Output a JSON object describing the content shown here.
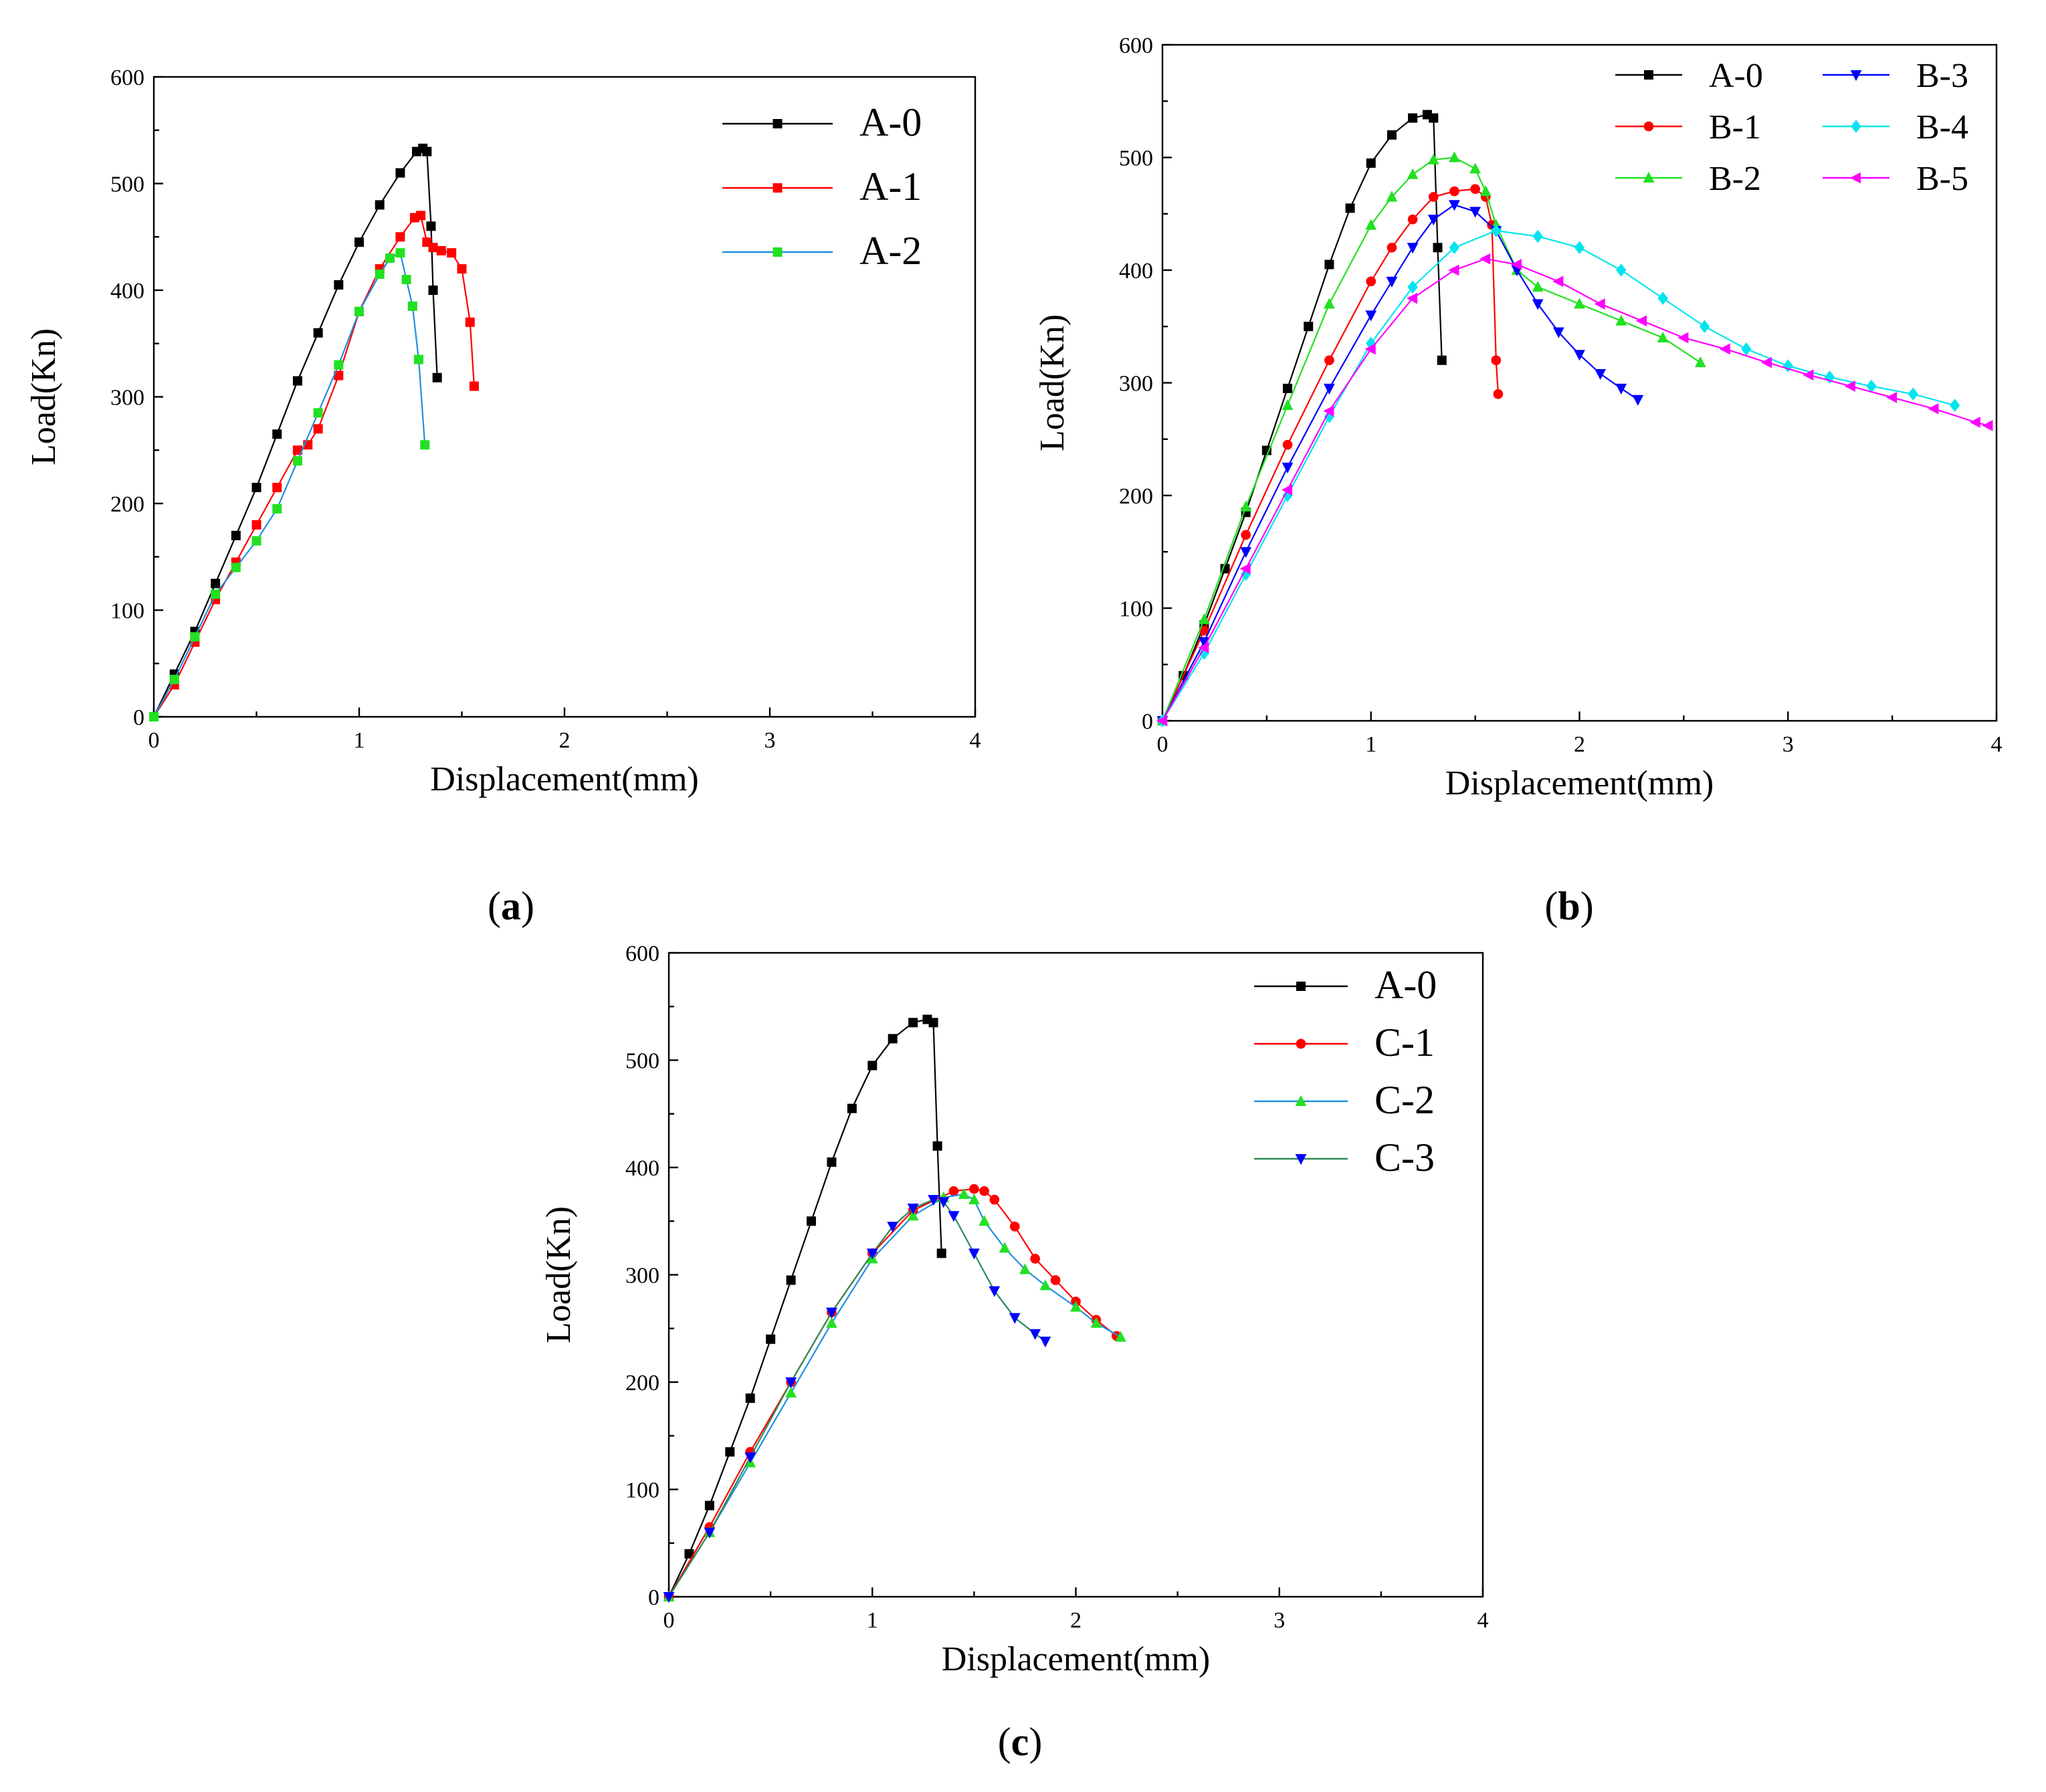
{
  "chart_data": [
    {
      "id": "a",
      "type": "line",
      "caption": "a",
      "xlabel": "Displacement(mm)",
      "ylabel": "Load(Kn)",
      "xlim": [
        0,
        4
      ],
      "ylim": [
        0,
        600
      ],
      "xticks": [
        "0",
        "1",
        "2",
        "3",
        "4"
      ],
      "yticks": [
        "0",
        "100",
        "200",
        "300",
        "400",
        "500",
        "600"
      ],
      "legend_position": "top-right",
      "series": [
        {
          "name": "A-0",
          "color": "#000000",
          "marker": "square",
          "x": [
            0,
            0.1,
            0.2,
            0.3,
            0.4,
            0.5,
            0.6,
            0.7,
            0.8,
            0.9,
            1.0,
            1.1,
            1.2,
            1.28,
            1.31,
            1.33,
            1.35,
            1.36,
            1.38
          ],
          "y": [
            0,
            40,
            80,
            125,
            170,
            215,
            265,
            315,
            360,
            405,
            445,
            480,
            510,
            530,
            533,
            530,
            460,
            400,
            318
          ]
        },
        {
          "name": "A-1",
          "color": "#ff0000",
          "marker": "square",
          "x": [
            0,
            0.1,
            0.2,
            0.3,
            0.4,
            0.5,
            0.6,
            0.7,
            0.75,
            0.8,
            0.9,
            1.0,
            1.1,
            1.2,
            1.27,
            1.3,
            1.33,
            1.36,
            1.4,
            1.45,
            1.5,
            1.54,
            1.56
          ],
          "y": [
            0,
            30,
            70,
            110,
            145,
            180,
            215,
            250,
            255,
            270,
            320,
            380,
            420,
            450,
            468,
            470,
            445,
            440,
            437,
            435,
            420,
            370,
            310
          ]
        },
        {
          "name": "A-2",
          "color": "#1f8fe0",
          "marker": "square",
          "marker_color": "#22e022",
          "x": [
            0,
            0.1,
            0.2,
            0.3,
            0.4,
            0.5,
            0.6,
            0.7,
            0.8,
            0.9,
            1.0,
            1.1,
            1.15,
            1.2,
            1.23,
            1.26,
            1.29,
            1.32
          ],
          "y": [
            0,
            35,
            75,
            115,
            140,
            165,
            195,
            240,
            285,
            330,
            380,
            415,
            430,
            435,
            410,
            385,
            335,
            255
          ]
        }
      ]
    },
    {
      "id": "b",
      "type": "line",
      "caption": "b",
      "xlabel": "Displacement(mm)",
      "ylabel": "Load(Kn)",
      "xlim": [
        0,
        4
      ],
      "ylim": [
        0,
        600
      ],
      "xticks": [
        "0",
        "1",
        "2",
        "3",
        "4"
      ],
      "yticks": [
        "0",
        "100",
        "200",
        "300",
        "400",
        "500",
        "600"
      ],
      "legend_position": "top-right",
      "series": [
        {
          "name": "A-0",
          "color": "#000000",
          "marker": "square",
          "x": [
            0,
            0.1,
            0.2,
            0.3,
            0.4,
            0.5,
            0.6,
            0.7,
            0.8,
            0.9,
            1.0,
            1.1,
            1.2,
            1.27,
            1.3,
            1.32,
            1.34
          ],
          "y": [
            0,
            40,
            85,
            135,
            185,
            240,
            295,
            350,
            405,
            455,
            495,
            520,
            535,
            538,
            535,
            420,
            320
          ]
        },
        {
          "name": "B-1",
          "color": "#ff0000",
          "marker": "circle",
          "x": [
            0,
            0.2,
            0.4,
            0.6,
            0.8,
            1.0,
            1.1,
            1.2,
            1.3,
            1.4,
            1.5,
            1.55,
            1.58,
            1.6,
            1.61
          ],
          "y": [
            0,
            80,
            165,
            245,
            320,
            390,
            420,
            445,
            465,
            470,
            472,
            465,
            440,
            320,
            290
          ]
        },
        {
          "name": "B-2",
          "color": "#22e022",
          "marker": "triangle-up",
          "x": [
            0,
            0.2,
            0.4,
            0.6,
            0.8,
            1.0,
            1.1,
            1.2,
            1.3,
            1.4,
            1.5,
            1.55,
            1.6,
            1.7,
            1.8,
            2.0,
            2.2,
            2.4,
            2.58
          ],
          "y": [
            0,
            90,
            190,
            280,
            370,
            440,
            465,
            485,
            498,
            500,
            490,
            470,
            440,
            400,
            385,
            370,
            355,
            340,
            318
          ]
        },
        {
          "name": "B-3",
          "color": "#0000ff",
          "marker": "triangle-down",
          "x": [
            0,
            0.2,
            0.4,
            0.6,
            0.8,
            1.0,
            1.1,
            1.2,
            1.3,
            1.4,
            1.5,
            1.6,
            1.7,
            1.8,
            1.9,
            2.0,
            2.1,
            2.2,
            2.28
          ],
          "y": [
            0,
            70,
            150,
            225,
            295,
            360,
            390,
            420,
            445,
            458,
            452,
            435,
            400,
            370,
            345,
            325,
            308,
            295,
            285
          ]
        },
        {
          "name": "B-4",
          "color": "#00e5ee",
          "marker": "diamond",
          "x": [
            0,
            0.2,
            0.4,
            0.6,
            0.8,
            1.0,
            1.2,
            1.4,
            1.6,
            1.8,
            2.0,
            2.2,
            2.4,
            2.6,
            2.8,
            3.0,
            3.2,
            3.4,
            3.6,
            3.8
          ],
          "y": [
            0,
            60,
            130,
            200,
            270,
            335,
            385,
            420,
            435,
            430,
            420,
            400,
            375,
            350,
            330,
            315,
            305,
            297,
            290,
            280
          ]
        },
        {
          "name": "B-5",
          "color": "#ff00ff",
          "marker": "triangle-left",
          "x": [
            0,
            0.2,
            0.4,
            0.6,
            0.8,
            1.0,
            1.2,
            1.4,
            1.55,
            1.7,
            1.9,
            2.1,
            2.3,
            2.5,
            2.7,
            2.9,
            3.1,
            3.3,
            3.5,
            3.7,
            3.9,
            3.96
          ],
          "y": [
            0,
            65,
            135,
            205,
            275,
            330,
            375,
            400,
            410,
            405,
            390,
            370,
            355,
            340,
            330,
            318,
            307,
            297,
            287,
            277,
            265,
            262
          ]
        }
      ]
    },
    {
      "id": "c",
      "type": "line",
      "caption": "c",
      "xlabel": "Displacement(mm)",
      "ylabel": "Load(Kn)",
      "xlim": [
        0,
        4
      ],
      "ylim": [
        0,
        600
      ],
      "xticks": [
        "0",
        "1",
        "2",
        "3",
        "4"
      ],
      "yticks": [
        "0",
        "100",
        "200",
        "300",
        "400",
        "500",
        "600"
      ],
      "legend_position": "top-right",
      "series": [
        {
          "name": "A-0",
          "color": "#000000",
          "marker": "square",
          "x": [
            0,
            0.1,
            0.2,
            0.3,
            0.4,
            0.5,
            0.6,
            0.7,
            0.8,
            0.9,
            1.0,
            1.1,
            1.2,
            1.27,
            1.3,
            1.32,
            1.34
          ],
          "y": [
            0,
            40,
            85,
            135,
            185,
            240,
            295,
            350,
            405,
            455,
            495,
            520,
            535,
            538,
            535,
            420,
            320
          ]
        },
        {
          "name": "C-1",
          "color": "#ff0000",
          "marker": "circle",
          "x": [
            0,
            0.2,
            0.4,
            0.6,
            0.8,
            1.0,
            1.2,
            1.4,
            1.5,
            1.55,
            1.6,
            1.7,
            1.8,
            1.9,
            2.0,
            2.1,
            2.2
          ],
          "y": [
            0,
            65,
            135,
            200,
            265,
            320,
            360,
            378,
            380,
            378,
            370,
            345,
            315,
            295,
            275,
            258,
            243
          ]
        },
        {
          "name": "C-2",
          "color": "#1f8fe0",
          "marker": "triangle-up",
          "marker_color": "#22e022",
          "x": [
            0,
            0.2,
            0.4,
            0.6,
            0.8,
            1.0,
            1.2,
            1.35,
            1.45,
            1.5,
            1.55,
            1.65,
            1.75,
            1.85,
            2.0,
            2.1,
            2.22
          ],
          "y": [
            0,
            60,
            125,
            190,
            255,
            315,
            355,
            372,
            375,
            370,
            350,
            325,
            305,
            290,
            270,
            255,
            242
          ]
        },
        {
          "name": "C-3",
          "color": "#2e8b57",
          "marker": "triangle-down",
          "marker_color": "#0000ff",
          "x": [
            0,
            0.2,
            0.4,
            0.6,
            0.8,
            1.0,
            1.1,
            1.2,
            1.3,
            1.35,
            1.4,
            1.5,
            1.6,
            1.7,
            1.8,
            1.85
          ],
          "y": [
            0,
            60,
            130,
            200,
            265,
            320,
            345,
            362,
            370,
            368,
            355,
            320,
            285,
            260,
            245,
            238
          ]
        }
      ]
    }
  ]
}
